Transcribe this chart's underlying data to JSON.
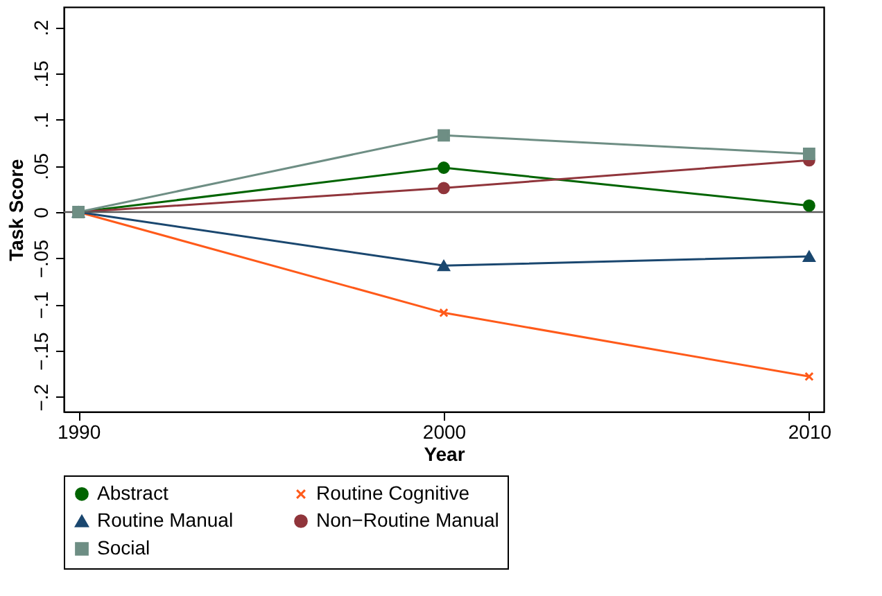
{
  "chart_data": {
    "type": "line",
    "xlabel": "Year",
    "ylabel": "Task Score",
    "x": [
      1990,
      2000,
      2010
    ],
    "series": [
      {
        "name": "Abstract",
        "color": "#006400",
        "marker": "circle",
        "values": [
          0,
          0.048,
          0.007
        ]
      },
      {
        "name": "Routine Cognitive",
        "color": "#ff5a1a",
        "marker": "cross",
        "values": [
          0,
          -0.109,
          -0.178
        ]
      },
      {
        "name": "Routine Manual",
        "color": "#1a476f",
        "marker": "triangle",
        "values": [
          0,
          -0.058,
          -0.048
        ]
      },
      {
        "name": "Non−Routine Manual",
        "color": "#90353b",
        "marker": "circle",
        "values": [
          0,
          0.026,
          0.056
        ]
      },
      {
        "name": "Social",
        "color": "#6e8e84",
        "marker": "square",
        "values": [
          0,
          0.083,
          0.063
        ]
      }
    ],
    "xlim": [
      1989.6,
      2010.4
    ],
    "xticks": [
      1990,
      2000,
      2010
    ],
    "ylim": [
      -0.216,
      0.222
    ],
    "yticks": [
      {
        "value": -0.2,
        "label": "−.2"
      },
      {
        "value": -0.15,
        "label": "−.15"
      },
      {
        "value": -0.1,
        "label": "−.1"
      },
      {
        "value": -0.05,
        "label": "−.05"
      },
      0,
      {
        "value": 0.05,
        "label": ".05"
      },
      {
        "value": 0.1,
        "label": ".1"
      },
      {
        "value": 0.15,
        "label": ".15"
      },
      {
        "value": 0.2,
        "label": ".2"
      }
    ],
    "ref_lines": [
      {
        "axis": "y",
        "value": 0,
        "color": "#595959"
      }
    ],
    "grid": false,
    "legend": "bottom",
    "line_style": "solid"
  }
}
